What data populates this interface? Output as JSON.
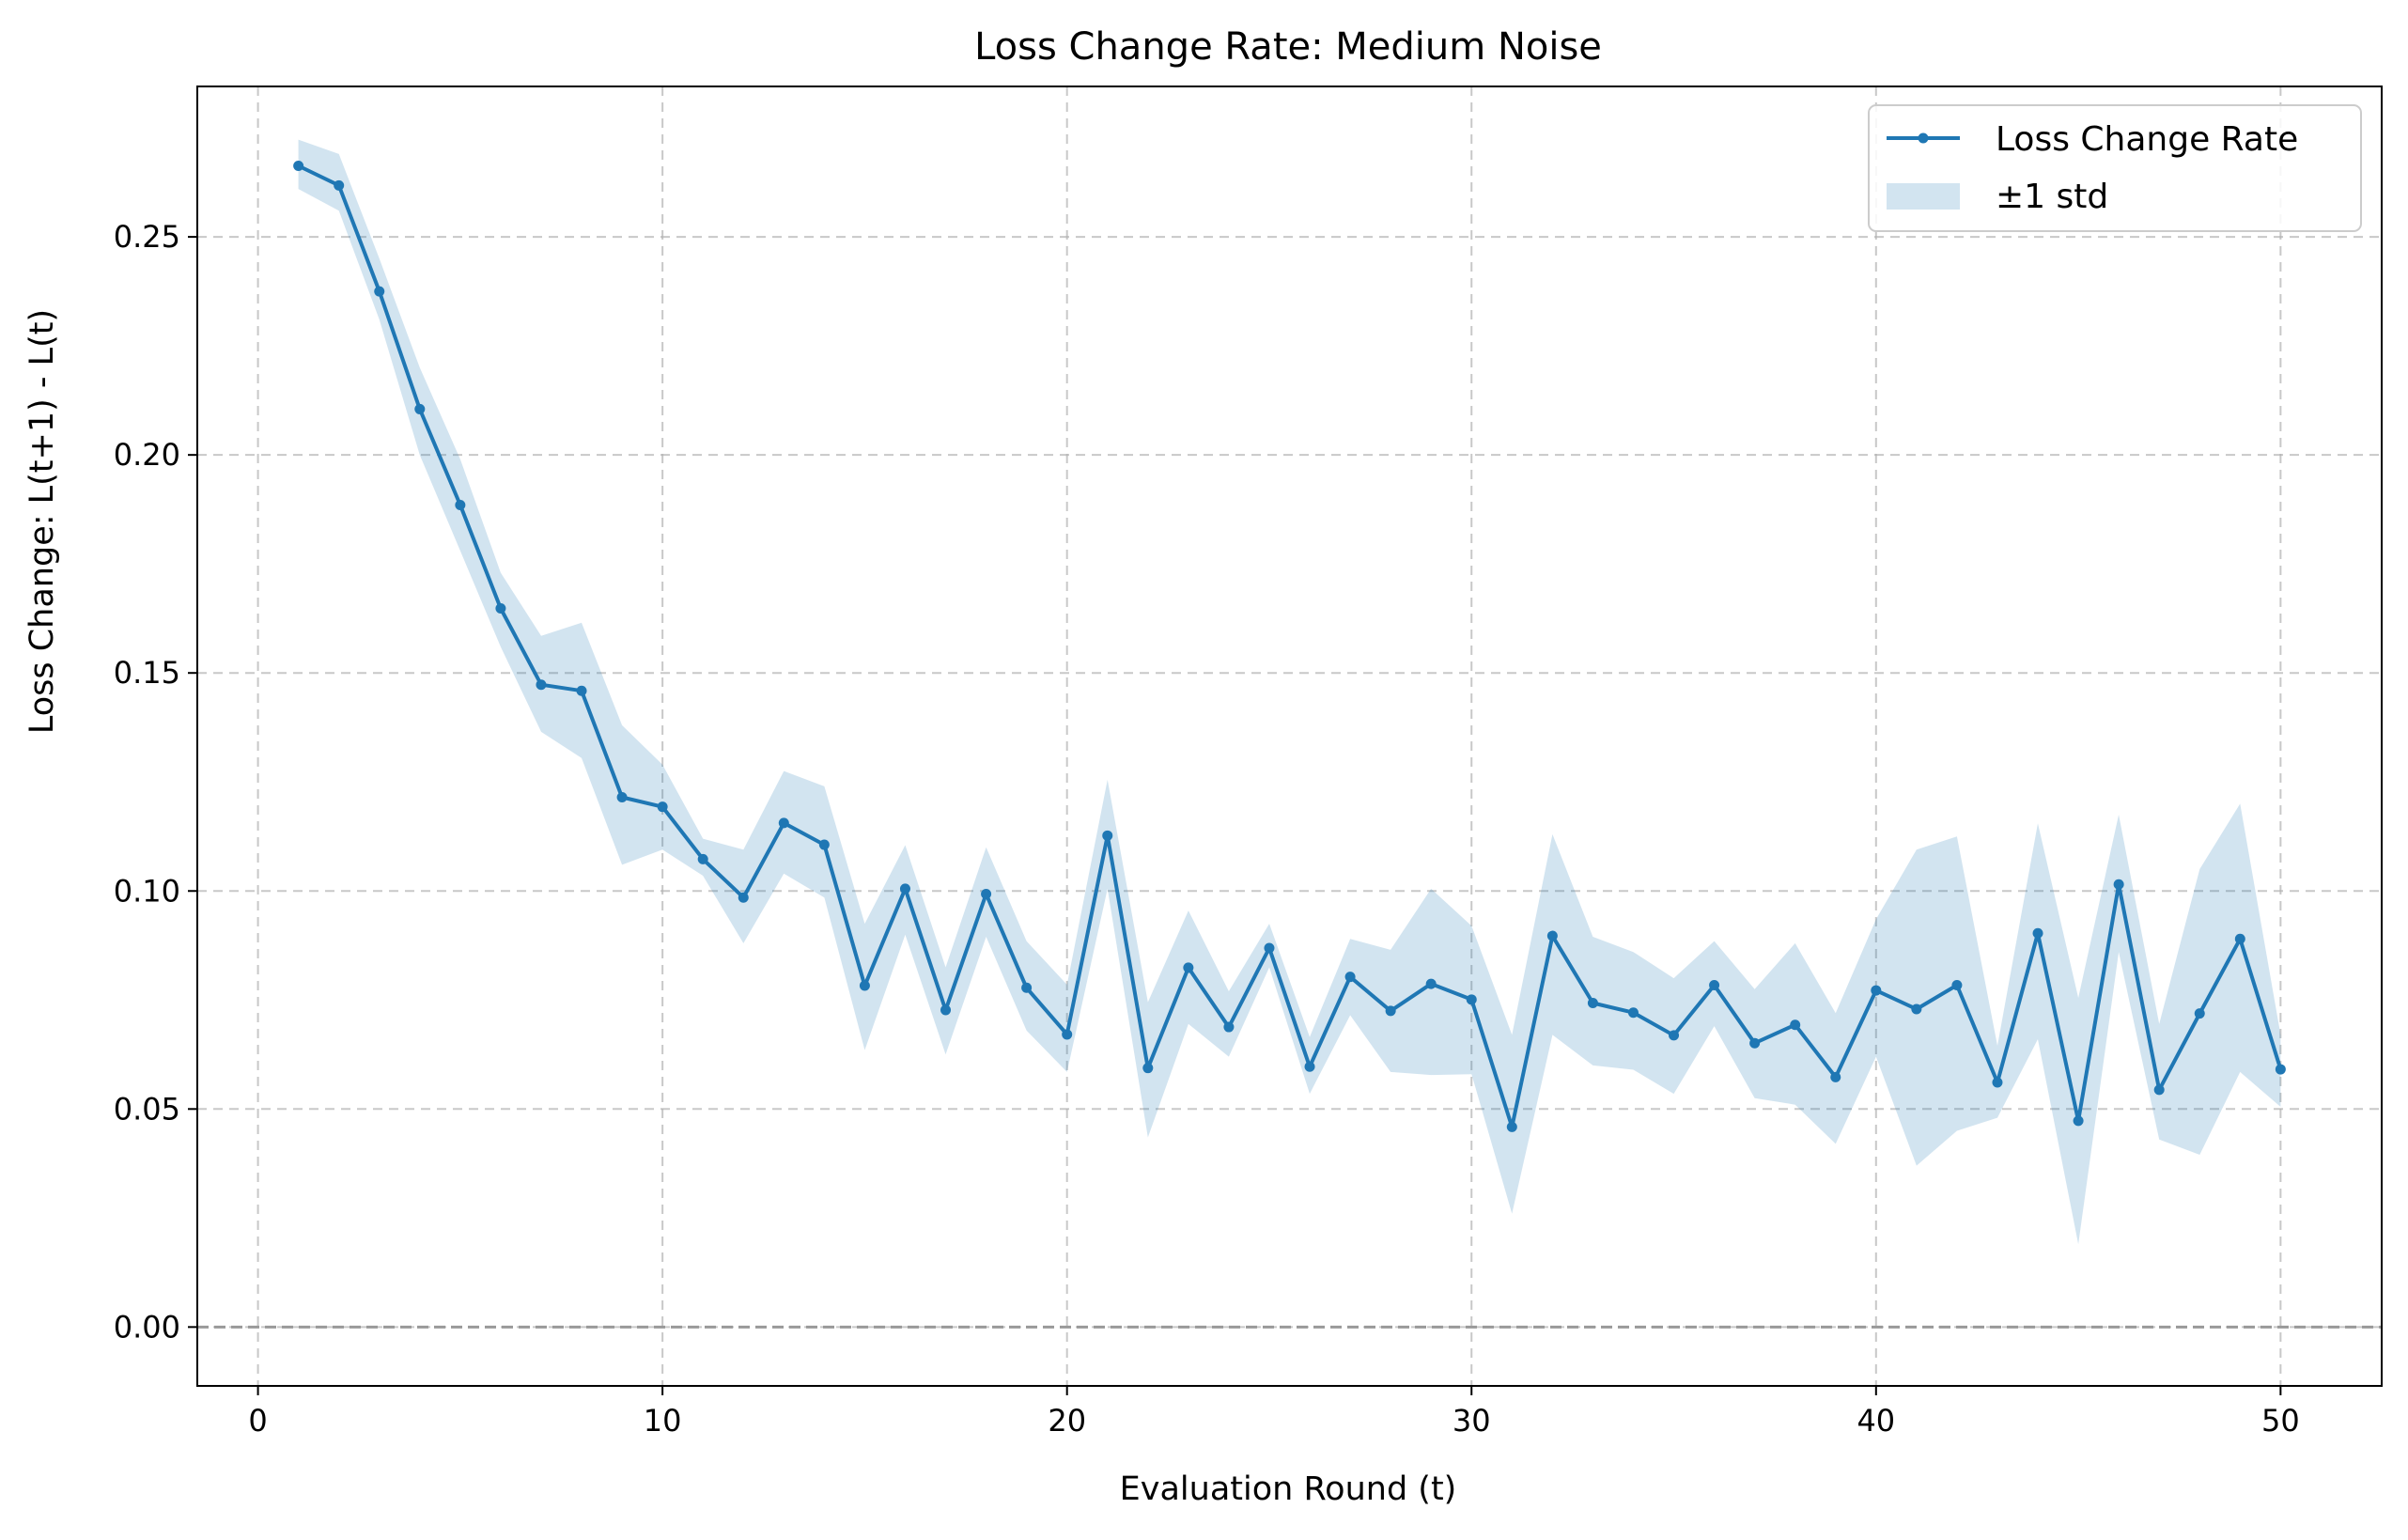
{
  "chart_data": {
    "type": "line",
    "title": "Loss Change Rate: Medium Noise",
    "xlabel": "Evaluation Round (t)",
    "ylabel": "Loss Change: L(t+1) - L(t)",
    "xlim": [
      -1.5,
      52.5
    ],
    "ylim": [
      -0.0135,
      0.2845
    ],
    "xticks": [
      0,
      10,
      20,
      30,
      40,
      50
    ],
    "xtick_labels": [
      "0",
      "10",
      "20",
      "30",
      "40",
      "50"
    ],
    "yticks": [
      0.0,
      0.05,
      0.1,
      0.15,
      0.2,
      0.25
    ],
    "ytick_labels": [
      "0.00",
      "0.05",
      "0.10",
      "0.15",
      "0.20",
      "0.25"
    ],
    "grid": true,
    "legend_position": "top-right",
    "reference_line": {
      "y": 0.0,
      "style": "dashed",
      "color": "#999999"
    },
    "x": [
      1,
      2,
      3,
      4,
      5,
      6,
      7,
      8,
      9,
      10,
      11,
      12,
      13,
      14,
      15,
      16,
      17,
      18,
      19,
      20,
      21,
      22,
      23,
      24,
      25,
      26,
      27,
      28,
      29,
      30,
      31,
      32,
      33,
      34,
      35,
      36,
      37,
      38,
      39,
      40,
      41,
      42,
      43,
      44,
      45,
      46,
      47,
      48,
      49,
      50
    ],
    "series": [
      {
        "name": "Loss Change Rate",
        "color": "#1f77b4",
        "values": [
          0.2663,
          0.2618,
          0.2375,
          0.2105,
          0.1885,
          0.1648,
          0.1473,
          0.1459,
          0.1215,
          0.1193,
          0.1073,
          0.0985,
          0.1156,
          0.1106,
          0.0783,
          0.1005,
          0.0727,
          0.0993,
          0.0778,
          0.0671,
          0.1127,
          0.0594,
          0.0824,
          0.0688,
          0.0869,
          0.0597,
          0.0803,
          0.0725,
          0.0787,
          0.0751,
          0.0459,
          0.0897,
          0.0743,
          0.0721,
          0.0669,
          0.0784,
          0.0651,
          0.0693,
          0.0573,
          0.0772,
          0.0729,
          0.0784,
          0.0561,
          0.0903,
          0.0473,
          0.1015,
          0.0544,
          0.0719,
          0.089,
          0.0591
        ]
      }
    ],
    "band": {
      "name": "±1 std",
      "color": "#1f77b4",
      "opacity": 0.2,
      "upper": [
        0.2723,
        0.269,
        0.245,
        0.22,
        0.199,
        0.173,
        0.1585,
        0.1615,
        0.138,
        0.129,
        0.112,
        0.1095,
        0.1275,
        0.124,
        0.0925,
        0.1105,
        0.0825,
        0.11,
        0.0885,
        0.0785,
        0.1255,
        0.0745,
        0.0955,
        0.077,
        0.0925,
        0.0665,
        0.089,
        0.0865,
        0.1005,
        0.092,
        0.067,
        0.113,
        0.0895,
        0.086,
        0.08,
        0.0885,
        0.0775,
        0.088,
        0.072,
        0.0935,
        0.1095,
        0.1125,
        0.0645,
        0.1155,
        0.0755,
        0.1175,
        0.0695,
        0.105,
        0.12,
        0.067
      ],
      "lower": [
        0.261,
        0.256,
        0.231,
        0.2,
        0.178,
        0.156,
        0.1365,
        0.1305,
        0.106,
        0.1095,
        0.1035,
        0.088,
        0.104,
        0.0985,
        0.0635,
        0.09,
        0.0625,
        0.0895,
        0.068,
        0.0585,
        0.1005,
        0.0435,
        0.0695,
        0.062,
        0.0825,
        0.0535,
        0.0715,
        0.0585,
        0.0578,
        0.058,
        0.026,
        0.067,
        0.06,
        0.059,
        0.0535,
        0.069,
        0.0525,
        0.051,
        0.042,
        0.062,
        0.037,
        0.045,
        0.048,
        0.066,
        0.019,
        0.086,
        0.043,
        0.0395,
        0.0585,
        0.0505
      ]
    }
  }
}
